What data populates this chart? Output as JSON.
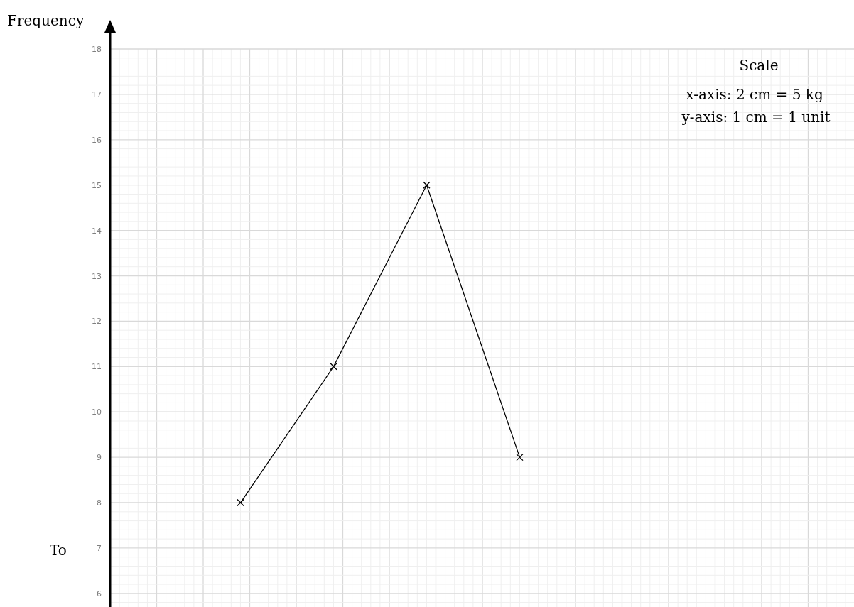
{
  "chart_data": {
    "type": "line",
    "ylabel": "Frequency",
    "categories": [
      null,
      null,
      null,
      null,
      null,
      null,
      null,
      null
    ],
    "values": [
      null,
      8,
      11,
      15,
      9,
      null,
      null,
      null
    ],
    "color": "#000000",
    "marker": "cross",
    "line_style": "solid",
    "ylim": [
      5.7,
      18
    ],
    "yticks": [
      6,
      7,
      8,
      9,
      10,
      11,
      12,
      13,
      14,
      15,
      16,
      17,
      18
    ],
    "grid": true,
    "tick_labels": "y",
    "annotations": [
      "Scale",
      "x-axis: 2 cm = 5 kg",
      "y-axis: 1 cm = 1 unit",
      "To"
    ]
  }
}
